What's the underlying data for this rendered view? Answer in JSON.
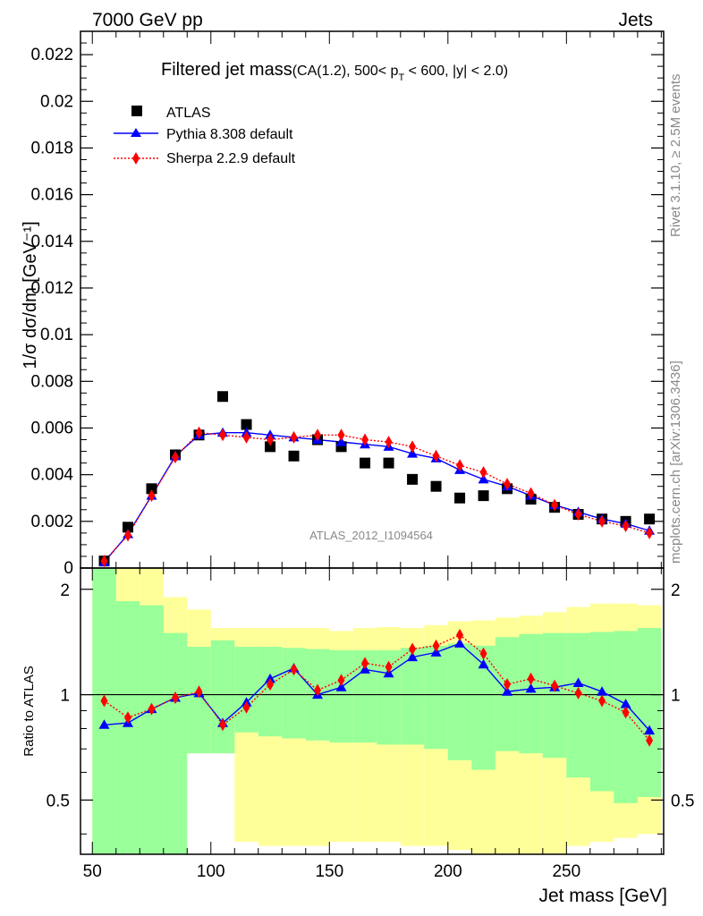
{
  "header": {
    "left": "7000 GeV pp",
    "right": "Jets"
  },
  "side": {
    "rivet": "Rivet 3.1.10, ≥ 2.5M events",
    "mcplots": "mcplots.cern.ch [arXiv:1306.3436]"
  },
  "chart_data": [
    {
      "type": "scatter",
      "title_main": "Filtered jet mass",
      "title_sub": "(CA(1.2), 500< p",
      "title_sub_T": "T",
      "title_sub_end": " < 600, |y| < 2.0)",
      "ylabel": "1/σ dσ/dm [GeV⁻¹]",
      "xlabel": "",
      "watermark": "ATLAS_2012_I1094564",
      "xlim": [
        45,
        291
      ],
      "ylim": [
        0,
        0.023
      ],
      "yticks": [
        0,
        0.002,
        0.004,
        0.006,
        0.008,
        0.01,
        0.012,
        0.014,
        0.016,
        0.018,
        0.02,
        0.022
      ],
      "ytick_labels": [
        "0",
        "0.002",
        "0.004",
        "0.006",
        "0.008",
        "0.01",
        "0.012",
        "0.014",
        "0.016",
        "0.018",
        "0.02",
        "0.022"
      ],
      "x": [
        55,
        65,
        75,
        85,
        95,
        105,
        115,
        125,
        135,
        145,
        155,
        165,
        175,
        185,
        195,
        205,
        215,
        225,
        235,
        245,
        255,
        265,
        275,
        285
      ],
      "series": [
        {
          "name": "ATLAS",
          "color": "#000000",
          "marker": "square",
          "values": [
            0.0003,
            0.00175,
            0.0034,
            0.00485,
            0.0057,
            0.00735,
            0.00615,
            0.0052,
            0.0048,
            0.0055,
            0.0052,
            0.0045,
            0.0045,
            0.0038,
            0.0035,
            0.003,
            0.0031,
            0.0034,
            0.00295,
            0.0026,
            0.0023,
            0.0021,
            0.002,
            0.0021
          ]
        },
        {
          "name": "Pythia 8.308 default",
          "color": "#0000ff",
          "marker": "triangle",
          "line": "solid",
          "values": [
            0.00025,
            0.00145,
            0.0031,
            0.0048,
            0.0057,
            0.0058,
            0.0058,
            0.0057,
            0.0056,
            0.0055,
            0.0054,
            0.0053,
            0.0052,
            0.0049,
            0.0047,
            0.0042,
            0.0038,
            0.0035,
            0.0031,
            0.0027,
            0.0024,
            0.0021,
            0.0019,
            0.0016
          ]
        },
        {
          "name": "Sherpa 2.2.9 default",
          "color": "#ff0000",
          "marker": "diamond",
          "line": "dotted",
          "values": [
            0.0003,
            0.0014,
            0.0031,
            0.00475,
            0.0058,
            0.0057,
            0.0056,
            0.0055,
            0.0056,
            0.0057,
            0.0057,
            0.0055,
            0.0054,
            0.0052,
            0.0048,
            0.0044,
            0.0041,
            0.0036,
            0.0032,
            0.0027,
            0.0023,
            0.002,
            0.0018,
            0.0015
          ]
        }
      ]
    },
    {
      "type": "line",
      "ylabel": "Ratio to ATLAS",
      "xlabel": "Jet mass [GeV]",
      "xlim": [
        45,
        291
      ],
      "ylim": [
        0.35,
        2.3
      ],
      "xticks": [
        50,
        100,
        150,
        200,
        250
      ],
      "xtick_labels": [
        "50",
        "100",
        "150",
        "200",
        "250"
      ],
      "yticks": [
        0.5,
        1,
        2
      ],
      "ytick_labels": [
        "0.5",
        "1",
        "2"
      ],
      "reference": 1,
      "bin_edges": [
        50,
        60,
        70,
        80,
        90,
        100,
        110,
        120,
        130,
        140,
        150,
        160,
        170,
        180,
        190,
        200,
        210,
        220,
        230,
        240,
        250,
        260,
        270,
        280,
        290
      ],
      "band_outer": {
        "color": "#ffff99",
        "lo": [
          0.35,
          0.35,
          0.35,
          0.68,
          0.68,
          0.68,
          0.38,
          0.37,
          0.37,
          0.37,
          0.38,
          0.38,
          0.38,
          0.37,
          0.37,
          0.36,
          0.35,
          0.35,
          0.35,
          0.35,
          0.37,
          0.38,
          0.39,
          0.4
        ],
        "hi": [
          2.3,
          2.3,
          2.3,
          1.9,
          1.75,
          1.55,
          1.55,
          1.55,
          1.55,
          1.55,
          1.52,
          1.55,
          1.56,
          1.55,
          1.58,
          1.62,
          1.63,
          1.66,
          1.68,
          1.72,
          1.78,
          1.82,
          1.82,
          1.8
        ]
      },
      "band_inner": {
        "color": "#99ff99",
        "lo": [
          0.35,
          0.35,
          0.35,
          0.35,
          0.68,
          0.68,
          0.78,
          0.76,
          0.75,
          0.74,
          0.73,
          0.73,
          0.72,
          0.72,
          0.7,
          0.65,
          0.61,
          0.69,
          0.68,
          0.66,
          0.58,
          0.53,
          0.49,
          0.51
        ],
        "hi": [
          2.3,
          1.85,
          1.8,
          1.5,
          1.37,
          1.43,
          1.37,
          1.37,
          1.36,
          1.35,
          1.34,
          1.34,
          1.34,
          1.36,
          1.38,
          1.4,
          1.38,
          1.46,
          1.49,
          1.5,
          1.5,
          1.51,
          1.52,
          1.55
        ]
      },
      "x": [
        55,
        65,
        75,
        85,
        95,
        105,
        115,
        125,
        135,
        145,
        155,
        165,
        175,
        185,
        195,
        205,
        215,
        225,
        235,
        245,
        255,
        265,
        275,
        285
      ],
      "series": [
        {
          "name": "Pythia 8.308 default",
          "color": "#0000ff",
          "marker": "triangle",
          "line": "solid",
          "values": [
            0.82,
            0.83,
            0.91,
            0.98,
            1.01,
            0.83,
            0.95,
            1.11,
            1.19,
            1.0,
            1.05,
            1.18,
            1.15,
            1.28,
            1.32,
            1.4,
            1.22,
            1.02,
            1.04,
            1.05,
            1.08,
            1.02,
            0.94,
            0.79
          ]
        },
        {
          "name": "Sherpa 2.2.9 default",
          "color": "#ff0000",
          "marker": "diamond",
          "line": "dotted",
          "values": [
            0.96,
            0.86,
            0.91,
            0.98,
            1.02,
            0.82,
            0.92,
            1.07,
            1.18,
            1.03,
            1.1,
            1.23,
            1.2,
            1.35,
            1.38,
            1.48,
            1.31,
            1.07,
            1.11,
            1.06,
            1.01,
            0.96,
            0.89,
            0.74
          ]
        }
      ]
    }
  ]
}
